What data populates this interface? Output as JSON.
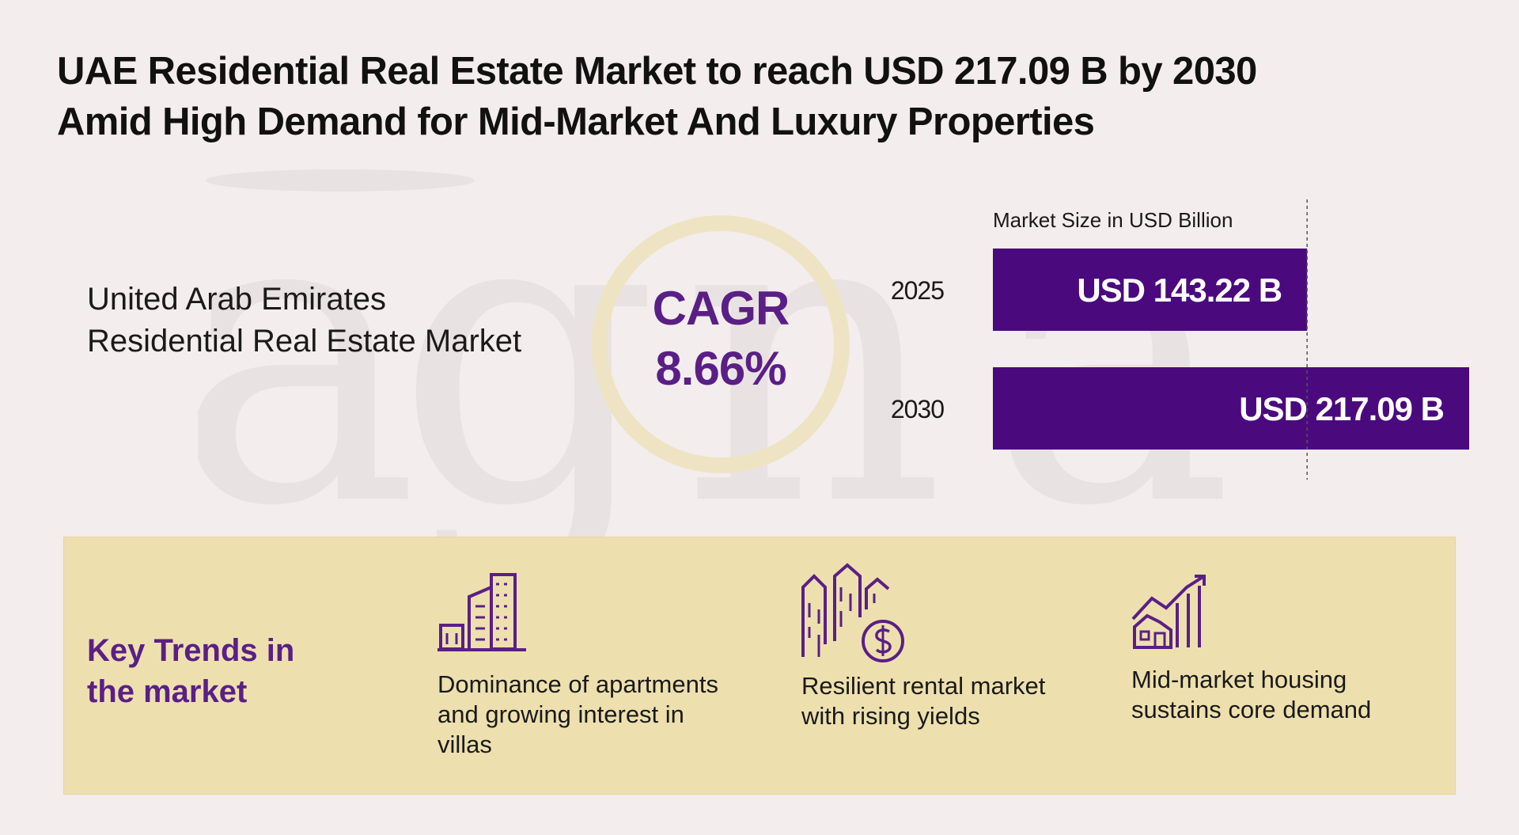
{
  "title_line1": "UAE Residential Real Estate Market to reach USD 217.09 B by 2030",
  "title_line2": "Amid High Demand for Mid-Market And Luxury Properties",
  "market_name_line1": "United Arab Emirates",
  "market_name_line2": "Residential Real Estate Market",
  "cagr_label": "CAGR",
  "cagr_value": "8.66%",
  "colors": {
    "accent": "#5a1f86",
    "bar": "#4a0a7e",
    "ring": "#eee4c4",
    "panel": "#ede0ae",
    "background": "#f3eded"
  },
  "chart_data": {
    "type": "bar",
    "orientation": "horizontal",
    "title": "Market Size in USD Billion",
    "categories": [
      "2025",
      "2030"
    ],
    "values": [
      143.22,
      217.09
    ],
    "data_labels": [
      "USD 143.22 B",
      "USD 217.09 B"
    ],
    "xlim": [
      0,
      217.09
    ],
    "grid": false
  },
  "trends": {
    "heading_line1": "Key Trends in",
    "heading_line2": "the market",
    "items": [
      {
        "icon": "buildings-icon",
        "line1": "Dominance of apartments",
        "line2": "and growing interest in",
        "line3": "villas"
      },
      {
        "icon": "rental-yield-icon",
        "line1": "Resilient rental market",
        "line2": "with rising yields",
        "line3": ""
      },
      {
        "icon": "housing-growth-icon",
        "line1": "Mid-market housing",
        "line2": "sustains core demand",
        "line3": ""
      }
    ]
  }
}
